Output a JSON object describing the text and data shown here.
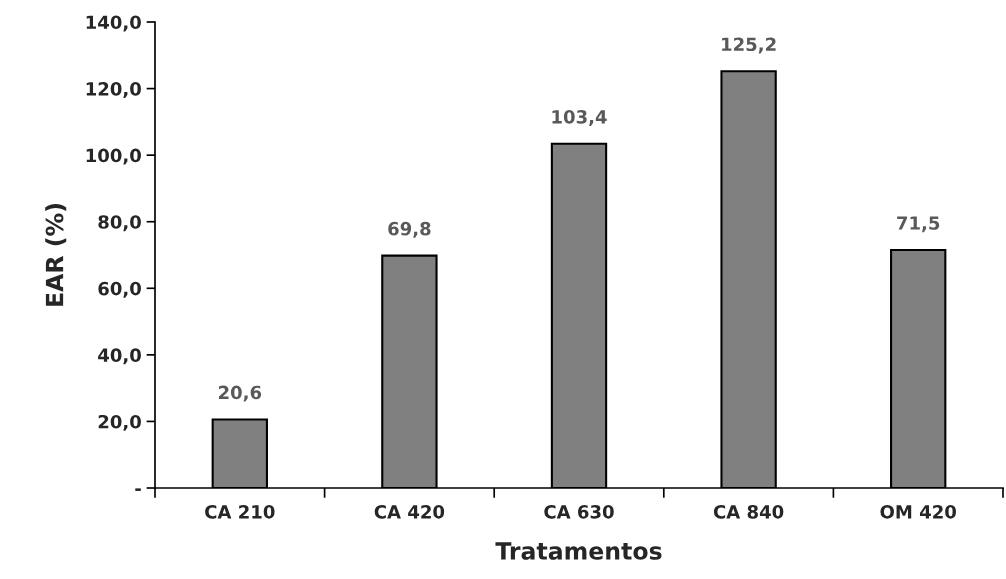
{
  "chart_data": {
    "type": "bar",
    "xlabel": "Tratamentos",
    "ylabel": "EAR (%)",
    "categories": [
      "CA 210",
      "CA 420",
      "CA 630",
      "CA 840",
      "OM 420"
    ],
    "values": [
      20.6,
      69.8,
      103.4,
      125.2,
      71.5
    ],
    "value_labels": [
      "20,6",
      "69,8",
      "103,4",
      "125,2",
      "71,5"
    ],
    "color": "#808080",
    "ylim": [
      0,
      140
    ],
    "yticks": [
      {
        "value": 0,
        "label": "-"
      },
      {
        "value": 20,
        "label": "20,0"
      },
      {
        "value": 40,
        "label": "40,0"
      },
      {
        "value": 60,
        "label": "60,0"
      },
      {
        "value": 80,
        "label": "80,0"
      },
      {
        "value": 100,
        "label": "100,0"
      },
      {
        "value": 120,
        "label": "120,0"
      },
      {
        "value": 140,
        "label": "140,0"
      }
    ],
    "grid": false
  }
}
